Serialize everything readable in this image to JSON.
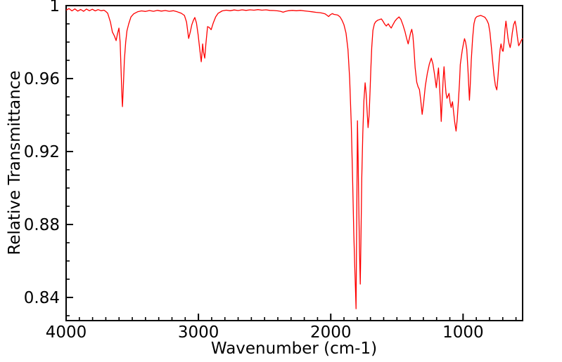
{
  "figure": {
    "background_color": "#ffffff",
    "frame_color": "#000000",
    "text_color": "#000000"
  },
  "chart_data": {
    "type": "line",
    "xlabel": "Wavenumber (cm-1)",
    "ylabel": "Relative Transmittance",
    "grid": false,
    "legend": "none",
    "x_axis": {
      "max": 4000,
      "min": 550,
      "reversed": true,
      "major_ticks": [
        4000,
        3000,
        2000,
        1000
      ],
      "major_tick_labels": [
        "4000",
        "3000",
        "2000",
        "1000"
      ],
      "minor_tick_step": 100
    },
    "y_axis": {
      "max": 1.0,
      "min": 0.8273,
      "major_ticks": [
        1.0,
        0.96,
        0.92,
        0.88,
        0.84
      ],
      "major_tick_labels": [
        "1",
        "0.96",
        "0.92",
        "0.88",
        "0.84"
      ],
      "minor_tick_step": 0.01
    },
    "series": [
      {
        "name": "ir-spectrum",
        "color": "#ff0000",
        "points": [
          [
            4000,
            0.9975
          ],
          [
            3978,
            0.9984
          ],
          [
            3956,
            0.9971
          ],
          [
            3934,
            0.9982
          ],
          [
            3912,
            0.997
          ],
          [
            3890,
            0.9979
          ],
          [
            3868,
            0.9969
          ],
          [
            3846,
            0.9981
          ],
          [
            3824,
            0.9972
          ],
          [
            3802,
            0.998
          ],
          [
            3780,
            0.9971
          ],
          [
            3758,
            0.9978
          ],
          [
            3736,
            0.9972
          ],
          [
            3714,
            0.9975
          ],
          [
            3700,
            0.9968
          ],
          [
            3686,
            0.9958
          ],
          [
            3665,
            0.991
          ],
          [
            3650,
            0.9855
          ],
          [
            3636,
            0.9835
          ],
          [
            3622,
            0.9808
          ],
          [
            3612,
            0.9845
          ],
          [
            3601,
            0.9877
          ],
          [
            3592,
            0.98
          ],
          [
            3585,
            0.965
          ],
          [
            3578,
            0.95
          ],
          [
            3574,
            0.9446
          ],
          [
            3568,
            0.955
          ],
          [
            3560,
            0.97
          ],
          [
            3550,
            0.98
          ],
          [
            3540,
            0.9862
          ],
          [
            3527,
            0.99
          ],
          [
            3510,
            0.9938
          ],
          [
            3489,
            0.9955
          ],
          [
            3460,
            0.9966
          ],
          [
            3430,
            0.9971
          ],
          [
            3400,
            0.9968
          ],
          [
            3370,
            0.9973
          ],
          [
            3340,
            0.9969
          ],
          [
            3310,
            0.9974
          ],
          [
            3280,
            0.997
          ],
          [
            3250,
            0.9973
          ],
          [
            3220,
            0.9969
          ],
          [
            3190,
            0.9972
          ],
          [
            3160,
            0.9966
          ],
          [
            3130,
            0.9958
          ],
          [
            3106,
            0.9946
          ],
          [
            3090,
            0.991
          ],
          [
            3074,
            0.982
          ],
          [
            3062,
            0.9855
          ],
          [
            3050,
            0.9895
          ],
          [
            3038,
            0.992
          ],
          [
            3027,
            0.9935
          ],
          [
            3015,
            0.9905
          ],
          [
            3002,
            0.984
          ],
          [
            2990,
            0.976
          ],
          [
            2979,
            0.9692
          ],
          [
            2973,
            0.974
          ],
          [
            2968,
            0.979
          ],
          [
            2962,
            0.9745
          ],
          [
            2952,
            0.9712
          ],
          [
            2944,
            0.979
          ],
          [
            2931,
            0.9885
          ],
          [
            2918,
            0.988
          ],
          [
            2904,
            0.9868
          ],
          [
            2888,
            0.9905
          ],
          [
            2870,
            0.9938
          ],
          [
            2851,
            0.9958
          ],
          [
            2820,
            0.9971
          ],
          [
            2790,
            0.9975
          ],
          [
            2760,
            0.9972
          ],
          [
            2730,
            0.9976
          ],
          [
            2700,
            0.9973
          ],
          [
            2670,
            0.9977
          ],
          [
            2640,
            0.9974
          ],
          [
            2610,
            0.9977
          ],
          [
            2580,
            0.9975
          ],
          [
            2550,
            0.9978
          ],
          [
            2520,
            0.9975
          ],
          [
            2490,
            0.9977
          ],
          [
            2460,
            0.9974
          ],
          [
            2430,
            0.9973
          ],
          [
            2400,
            0.9971
          ],
          [
            2380,
            0.9969
          ],
          [
            2360,
            0.9964
          ],
          [
            2340,
            0.9969
          ],
          [
            2320,
            0.9972
          ],
          [
            2290,
            0.9974
          ],
          [
            2260,
            0.9972
          ],
          [
            2230,
            0.9974
          ],
          [
            2200,
            0.9971
          ],
          [
            2170,
            0.9969
          ],
          [
            2140,
            0.9966
          ],
          [
            2110,
            0.9963
          ],
          [
            2080,
            0.9961
          ],
          [
            2060,
            0.9958
          ],
          [
            2043,
            0.9955
          ],
          [
            2030,
            0.9948
          ],
          [
            2016,
            0.994
          ],
          [
            2003,
            0.995
          ],
          [
            1989,
            0.9956
          ],
          [
            1975,
            0.9952
          ],
          [
            1960,
            0.995
          ],
          [
            1947,
            0.9948
          ],
          [
            1930,
            0.9938
          ],
          [
            1915,
            0.992
          ],
          [
            1900,
            0.9895
          ],
          [
            1885,
            0.985
          ],
          [
            1870,
            0.976
          ],
          [
            1857,
            0.96
          ],
          [
            1845,
            0.935
          ],
          [
            1835,
            0.905
          ],
          [
            1826,
            0.875
          ],
          [
            1818,
            0.855
          ],
          [
            1812,
            0.842
          ],
          [
            1809,
            0.8338
          ],
          [
            1806,
            0.86
          ],
          [
            1802,
            0.9
          ],
          [
            1798,
            0.9369
          ],
          [
            1793,
            0.915
          ],
          [
            1788,
            0.89
          ],
          [
            1783,
            0.865
          ],
          [
            1777,
            0.8473
          ],
          [
            1772,
            0.87
          ],
          [
            1766,
            0.905
          ],
          [
            1758,
            0.93
          ],
          [
            1749,
            0.948
          ],
          [
            1740,
            0.9577
          ],
          [
            1733,
            0.952
          ],
          [
            1726,
            0.943
          ],
          [
            1718,
            0.9331
          ],
          [
            1710,
            0.94
          ],
          [
            1703,
            0.953
          ],
          [
            1697,
            0.965
          ],
          [
            1690,
            0.977
          ],
          [
            1681,
            0.9865
          ],
          [
            1670,
            0.99
          ],
          [
            1660,
            0.9912
          ],
          [
            1645,
            0.992
          ],
          [
            1630,
            0.9924
          ],
          [
            1617,
            0.9927
          ],
          [
            1603,
            0.9912
          ],
          [
            1592,
            0.9898
          ],
          [
            1580,
            0.9888
          ],
          [
            1572,
            0.9895
          ],
          [
            1565,
            0.99
          ],
          [
            1557,
            0.989
          ],
          [
            1543,
            0.9877
          ],
          [
            1530,
            0.9895
          ],
          [
            1515,
            0.9915
          ],
          [
            1500,
            0.9928
          ],
          [
            1484,
            0.9938
          ],
          [
            1470,
            0.9925
          ],
          [
            1455,
            0.9895
          ],
          [
            1440,
            0.986
          ],
          [
            1428,
            0.9825
          ],
          [
            1415,
            0.979
          ],
          [
            1406,
            0.982
          ],
          [
            1397,
            0.985
          ],
          [
            1388,
            0.987
          ],
          [
            1380,
            0.984
          ],
          [
            1372,
            0.977
          ],
          [
            1362,
            0.966
          ],
          [
            1350,
            0.958
          ],
          [
            1340,
            0.9555
          ],
          [
            1330,
            0.954
          ],
          [
            1320,
            0.948
          ],
          [
            1309,
            0.9404
          ],
          [
            1298,
            0.947
          ],
          [
            1285,
            0.956
          ],
          [
            1270,
            0.963
          ],
          [
            1255,
            0.968
          ],
          [
            1240,
            0.9712
          ],
          [
            1228,
            0.968
          ],
          [
            1215,
            0.962
          ],
          [
            1202,
            0.955
          ],
          [
            1194,
            0.961
          ],
          [
            1186,
            0.9658
          ],
          [
            1178,
            0.956
          ],
          [
            1170,
            0.945
          ],
          [
            1165,
            0.9365
          ],
          [
            1158,
            0.948
          ],
          [
            1150,
            0.96
          ],
          [
            1144,
            0.9665
          ],
          [
            1137,
            0.959
          ],
          [
            1129,
            0.952
          ],
          [
            1122,
            0.9492
          ],
          [
            1114,
            0.9505
          ],
          [
            1106,
            0.9519
          ],
          [
            1098,
            0.947
          ],
          [
            1090,
            0.9442
          ],
          [
            1085,
            0.946
          ],
          [
            1080,
            0.9473
          ],
          [
            1072,
            0.942
          ],
          [
            1063,
            0.936
          ],
          [
            1053,
            0.9312
          ],
          [
            1044,
            0.938
          ],
          [
            1035,
            0.948
          ],
          [
            1027,
            0.958
          ],
          [
            1021,
            0.9677
          ],
          [
            1013,
            0.972
          ],
          [
            1005,
            0.976
          ],
          [
            996,
            0.9795
          ],
          [
            989,
            0.9819
          ],
          [
            981,
            0.98
          ],
          [
            972,
            0.976
          ],
          [
            963,
            0.965
          ],
          [
            957,
            0.956
          ],
          [
            952,
            0.9481
          ],
          [
            946,
            0.956
          ],
          [
            938,
            0.97
          ],
          [
            928,
            0.982
          ],
          [
            918,
            0.99
          ],
          [
            908,
            0.993
          ],
          [
            895,
            0.994
          ],
          [
            880,
            0.9943
          ],
          [
            867,
            0.9946
          ],
          [
            850,
            0.9941
          ],
          [
            835,
            0.9936
          ],
          [
            820,
            0.992
          ],
          [
            808,
            0.99
          ],
          [
            797,
            0.9855
          ],
          [
            787,
            0.978
          ],
          [
            776,
            0.969
          ],
          [
            766,
            0.9615
          ],
          [
            755,
            0.956
          ],
          [
            745,
            0.9538
          ],
          [
            737,
            0.96
          ],
          [
            728,
            0.969
          ],
          [
            720,
            0.976
          ],
          [
            713,
            0.979
          ],
          [
            708,
            0.977
          ],
          [
            702,
            0.9752
          ],
          [
            697,
            0.975
          ],
          [
            690,
            0.98
          ],
          [
            683,
            0.987
          ],
          [
            676,
            0.9915
          ],
          [
            668,
            0.987
          ],
          [
            660,
            0.982
          ],
          [
            652,
            0.979
          ],
          [
            644,
            0.977
          ],
          [
            636,
            0.98
          ],
          [
            628,
            0.985
          ],
          [
            618,
            0.9895
          ],
          [
            607,
            0.9915
          ],
          [
            598,
            0.988
          ],
          [
            590,
            0.983
          ],
          [
            580,
            0.978
          ],
          [
            572,
            0.979
          ],
          [
            563,
            0.9805
          ],
          [
            556,
            0.9815
          ],
          [
            548,
            0.982
          ]
        ]
      }
    ]
  }
}
